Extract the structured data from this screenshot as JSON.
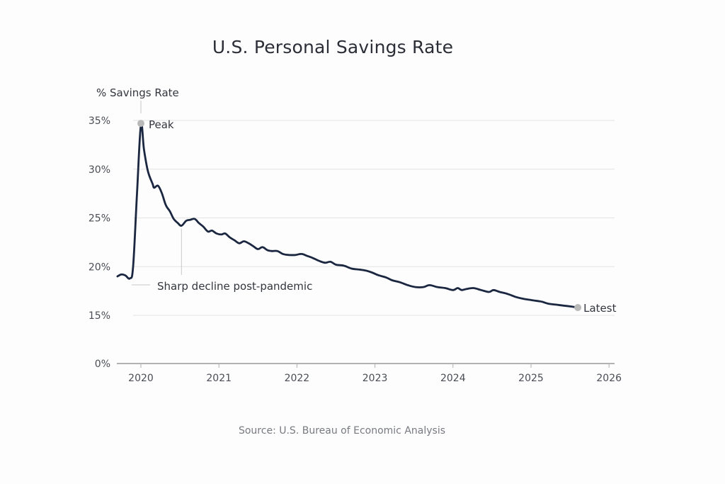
{
  "chart_data": {
    "type": "line",
    "title": "U.S. Personal Savings Rate",
    "ylabel": "% Savings Rate",
    "xlabel": "",
    "source": "Source: U.S. Bureau of Economic Analysis",
    "y_ticks": [
      {
        "value": 0,
        "label": "0%"
      },
      {
        "value": 15,
        "label": "15%"
      },
      {
        "value": 20,
        "label": "20%"
      },
      {
        "value": 25,
        "label": "25%"
      },
      {
        "value": 30,
        "label": "30%"
      },
      {
        "value": 35,
        "label": "35%"
      }
    ],
    "x_ticks": [
      {
        "value": 2020,
        "label": "2020"
      },
      {
        "value": 2021,
        "label": "2021"
      },
      {
        "value": 2022,
        "label": "2022"
      },
      {
        "value": 2023,
        "label": "2023"
      },
      {
        "value": 2024,
        "label": "2024"
      },
      {
        "value": 2025,
        "label": "2025"
      },
      {
        "value": 2026,
        "label": "2026"
      }
    ],
    "xlim": [
      2019.7,
      2026.05
    ],
    "ylim": [
      0,
      35
    ],
    "grid": true,
    "series": [
      {
        "name": "Personal Savings Rate",
        "color": "#1b2740",
        "points": [
          [
            2019.7,
            19.0
          ],
          [
            2019.75,
            19.2
          ],
          [
            2019.8,
            19.1
          ],
          [
            2019.86,
            18.8
          ],
          [
            2019.9,
            20.0
          ],
          [
            2019.95,
            27.5
          ],
          [
            2020.0,
            34.5
          ],
          [
            2020.04,
            32.0
          ],
          [
            2020.09,
            29.8
          ],
          [
            2020.15,
            28.5
          ],
          [
            2020.17,
            28.1
          ],
          [
            2020.22,
            28.3
          ],
          [
            2020.27,
            27.5
          ],
          [
            2020.32,
            26.3
          ],
          [
            2020.37,
            25.7
          ],
          [
            2020.42,
            24.9
          ],
          [
            2020.47,
            24.5
          ],
          [
            2020.52,
            24.2
          ],
          [
            2020.58,
            24.7
          ],
          [
            2020.63,
            24.8
          ],
          [
            2020.69,
            24.9
          ],
          [
            2020.74,
            24.5
          ],
          [
            2020.8,
            24.1
          ],
          [
            2020.86,
            23.6
          ],
          [
            2020.91,
            23.7
          ],
          [
            2020.97,
            23.4
          ],
          [
            2021.03,
            23.3
          ],
          [
            2021.08,
            23.4
          ],
          [
            2021.14,
            23.0
          ],
          [
            2021.2,
            22.7
          ],
          [
            2021.26,
            22.4
          ],
          [
            2021.32,
            22.6
          ],
          [
            2021.38,
            22.4
          ],
          [
            2021.44,
            22.1
          ],
          [
            2021.5,
            21.8
          ],
          [
            2021.56,
            22.0
          ],
          [
            2021.62,
            21.7
          ],
          [
            2021.68,
            21.6
          ],
          [
            2021.75,
            21.6
          ],
          [
            2021.82,
            21.3
          ],
          [
            2021.9,
            21.2
          ],
          [
            2021.98,
            21.2
          ],
          [
            2022.06,
            21.3
          ],
          [
            2022.13,
            21.1
          ],
          [
            2022.2,
            20.9
          ],
          [
            2022.28,
            20.6
          ],
          [
            2022.36,
            20.4
          ],
          [
            2022.43,
            20.5
          ],
          [
            2022.5,
            20.2
          ],
          [
            2022.6,
            20.1
          ],
          [
            2022.7,
            19.8
          ],
          [
            2022.8,
            19.7
          ],
          [
            2022.88,
            19.6
          ],
          [
            2022.96,
            19.4
          ],
          [
            2023.05,
            19.1
          ],
          [
            2023.14,
            18.9
          ],
          [
            2023.22,
            18.6
          ],
          [
            2023.32,
            18.4
          ],
          [
            2023.42,
            18.1
          ],
          [
            2023.52,
            17.9
          ],
          [
            2023.62,
            17.9
          ],
          [
            2023.7,
            18.1
          ],
          [
            2023.8,
            17.9
          ],
          [
            2023.9,
            17.8
          ],
          [
            2024.0,
            17.6
          ],
          [
            2024.06,
            17.8
          ],
          [
            2024.11,
            17.6
          ],
          [
            2024.17,
            17.7
          ],
          [
            2024.26,
            17.8
          ],
          [
            2024.36,
            17.6
          ],
          [
            2024.46,
            17.4
          ],
          [
            2024.52,
            17.6
          ],
          [
            2024.6,
            17.4
          ],
          [
            2024.7,
            17.2
          ],
          [
            2024.8,
            16.9
          ],
          [
            2024.9,
            16.7
          ],
          [
            2024.98,
            16.6
          ],
          [
            2025.06,
            16.5
          ],
          [
            2025.14,
            16.4
          ],
          [
            2025.22,
            16.2
          ],
          [
            2025.32,
            16.1
          ],
          [
            2025.42,
            16.0
          ],
          [
            2025.52,
            15.9
          ],
          [
            2025.6,
            15.8
          ]
        ]
      }
    ],
    "annotations": [
      {
        "label": "Peak",
        "x": 2020.0,
        "y": 34.7
      },
      {
        "label": "Sharp decline post-pandemic",
        "x": 2020.52,
        "y": 24.2
      },
      {
        "label": "Latest",
        "x": 2025.6,
        "y": 15.8
      }
    ],
    "legend": "none"
  }
}
